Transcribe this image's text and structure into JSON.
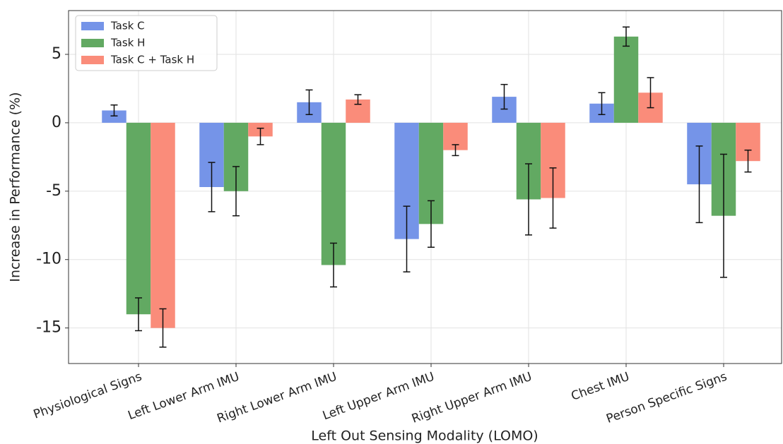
{
  "chart_data": {
    "type": "bar",
    "xlabel": "Left Out Sensing Modality (LOMO)",
    "ylabel": "Increase in Performance (%)",
    "categories": [
      "Physiological Signs",
      "Left Lower Arm IMU",
      "Right Lower Arm IMU",
      "Left Upper Arm IMU",
      "Right Upper Arm IMU",
      "Chest IMU",
      "Person Specific Signs"
    ],
    "series": [
      {
        "name": "Task C",
        "color": "#7594e8",
        "values": [
          0.9,
          -4.7,
          1.5,
          -8.5,
          1.9,
          1.4,
          -4.5
        ],
        "errors": [
          0.4,
          1.8,
          0.9,
          2.4,
          0.9,
          0.8,
          2.8
        ]
      },
      {
        "name": "Task H",
        "color": "#62a962",
        "values": [
          -14.0,
          -5.0,
          -10.4,
          -7.4,
          -5.6,
          6.3,
          -6.8
        ],
        "errors": [
          1.2,
          1.8,
          1.6,
          1.7,
          2.6,
          0.7,
          4.5
        ]
      },
      {
        "name": "Task C + Task H",
        "color": "#fa8c7a",
        "values": [
          -15.0,
          -1.0,
          1.7,
          -2.0,
          -5.5,
          2.2,
          -2.8
        ],
        "errors": [
          1.4,
          0.6,
          0.35,
          0.4,
          2.2,
          1.1,
          0.8
        ]
      }
    ],
    "ylim": [
      -17.6,
      8.2
    ],
    "yticks": [
      -15,
      -10,
      -5,
      0,
      5
    ],
    "grid": true,
    "legend": "upper left"
  }
}
